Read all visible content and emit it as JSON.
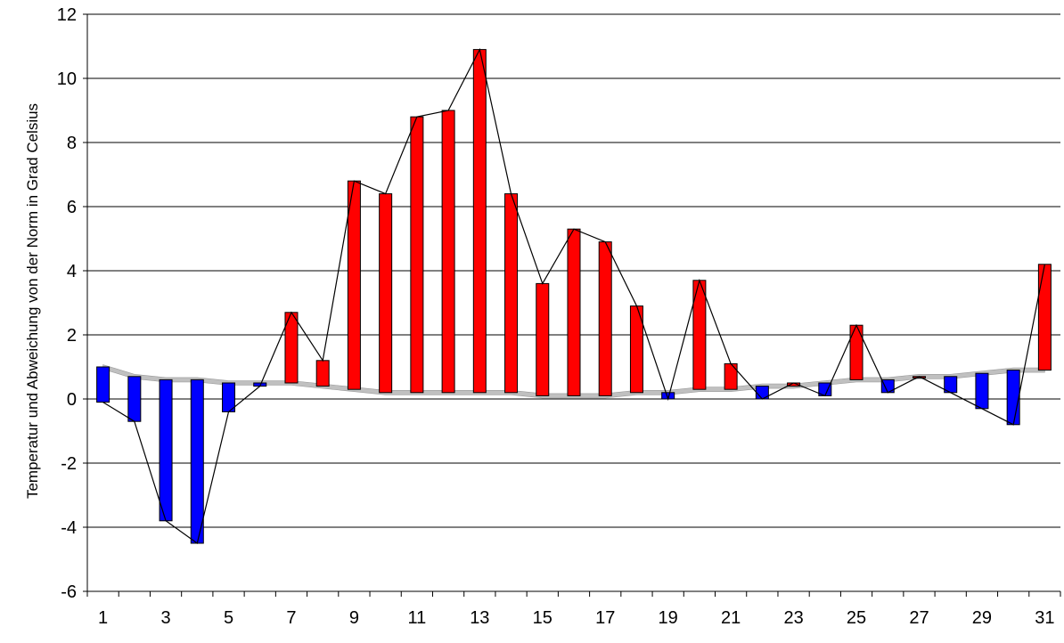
{
  "chart_data": {
    "type": "bar",
    "title": "",
    "xlabel": "",
    "ylabel": "Temperatur und Abweichung von der Norm in Grad Celsius",
    "ylim": [
      -6,
      12
    ],
    "y_ticks": [
      -6,
      -4,
      -2,
      0,
      2,
      4,
      6,
      8,
      10,
      12
    ],
    "x": [
      1,
      2,
      3,
      4,
      5,
      6,
      7,
      8,
      9,
      10,
      11,
      12,
      13,
      14,
      15,
      16,
      17,
      18,
      19,
      20,
      21,
      22,
      23,
      24,
      25,
      26,
      27,
      28,
      29,
      30,
      31
    ],
    "x_tick_labels": [
      "1",
      "3",
      "5",
      "7",
      "9",
      "11",
      "13",
      "15",
      "17",
      "19",
      "21",
      "23",
      "25",
      "27",
      "29",
      "31"
    ],
    "grid": "horizontal",
    "legend": "none",
    "series": [
      {
        "values": [
          -0.1,
          -0.7,
          -3.8,
          -4.5,
          -0.4,
          0.4,
          2.7,
          1.2,
          6.8,
          6.4,
          8.8,
          9.0,
          10.9,
          6.4,
          3.6,
          5.3,
          4.9,
          2.9,
          0.0,
          3.7,
          1.1,
          0.0,
          0.5,
          0.1,
          2.3,
          0.2,
          0.7,
          0.2,
          -0.3,
          -0.8,
          4.2
        ]
      },
      {
        "values": [
          1.0,
          0.7,
          0.6,
          0.6,
          0.5,
          0.5,
          0.5,
          0.4,
          0.3,
          0.2,
          0.2,
          0.2,
          0.2,
          0.2,
          0.1,
          0.1,
          0.1,
          0.2,
          0.2,
          0.3,
          0.3,
          0.4,
          0.4,
          0.5,
          0.6,
          0.6,
          0.7,
          0.7,
          0.8,
          0.9,
          0.9
        ]
      }
    ],
    "colors": {
      "above_norm": "#ff0000",
      "below_norm": "#0000ff",
      "norm_band": "#c0c0c0",
      "line": "#000000",
      "grid": "#000000"
    }
  }
}
